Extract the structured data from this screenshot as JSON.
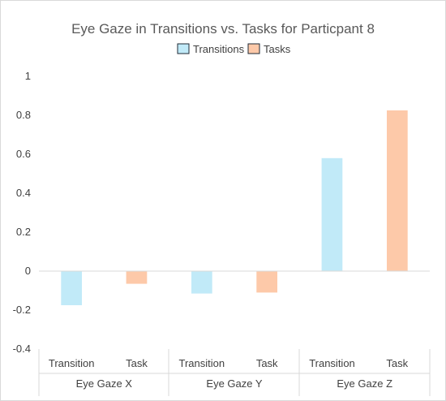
{
  "chart_data": {
    "type": "bar",
    "title": "Eye Gaze in Transitions vs. Tasks for Particpant 8",
    "groups": [
      "Eye Gaze X",
      "Eye Gaze Y",
      "Eye Gaze Z"
    ],
    "bars": [
      {
        "group": "Eye Gaze X",
        "label": "Transition",
        "series": "Transitions",
        "value": -0.175
      },
      {
        "group": "Eye Gaze X",
        "label": "Task",
        "series": "Tasks",
        "value": -0.065
      },
      {
        "group": "Eye Gaze Y",
        "label": "Transition",
        "series": "Transitions",
        "value": -0.115
      },
      {
        "group": "Eye Gaze Y",
        "label": "Task",
        "series": "Tasks",
        "value": -0.11
      },
      {
        "group": "Eye Gaze Z",
        "label": "Transition",
        "series": "Transitions",
        "value": 0.58
      },
      {
        "group": "Eye Gaze Z",
        "label": "Task",
        "series": "Tasks",
        "value": 0.825
      }
    ],
    "series": [
      {
        "name": "Transitions",
        "color": "#c1eaf8"
      },
      {
        "name": "Tasks",
        "color": "#fdc9a9"
      }
    ],
    "ylim": [
      -0.4,
      1
    ],
    "yticks": [
      "1",
      "0.8",
      "0.6",
      "0.4",
      "0.2",
      "0",
      "-0.2",
      "-0.4"
    ],
    "ytick_values": [
      1,
      0.8,
      0.6,
      0.4,
      0.2,
      0,
      -0.2,
      -0.4
    ],
    "legend_position": "top",
    "grid": false
  }
}
